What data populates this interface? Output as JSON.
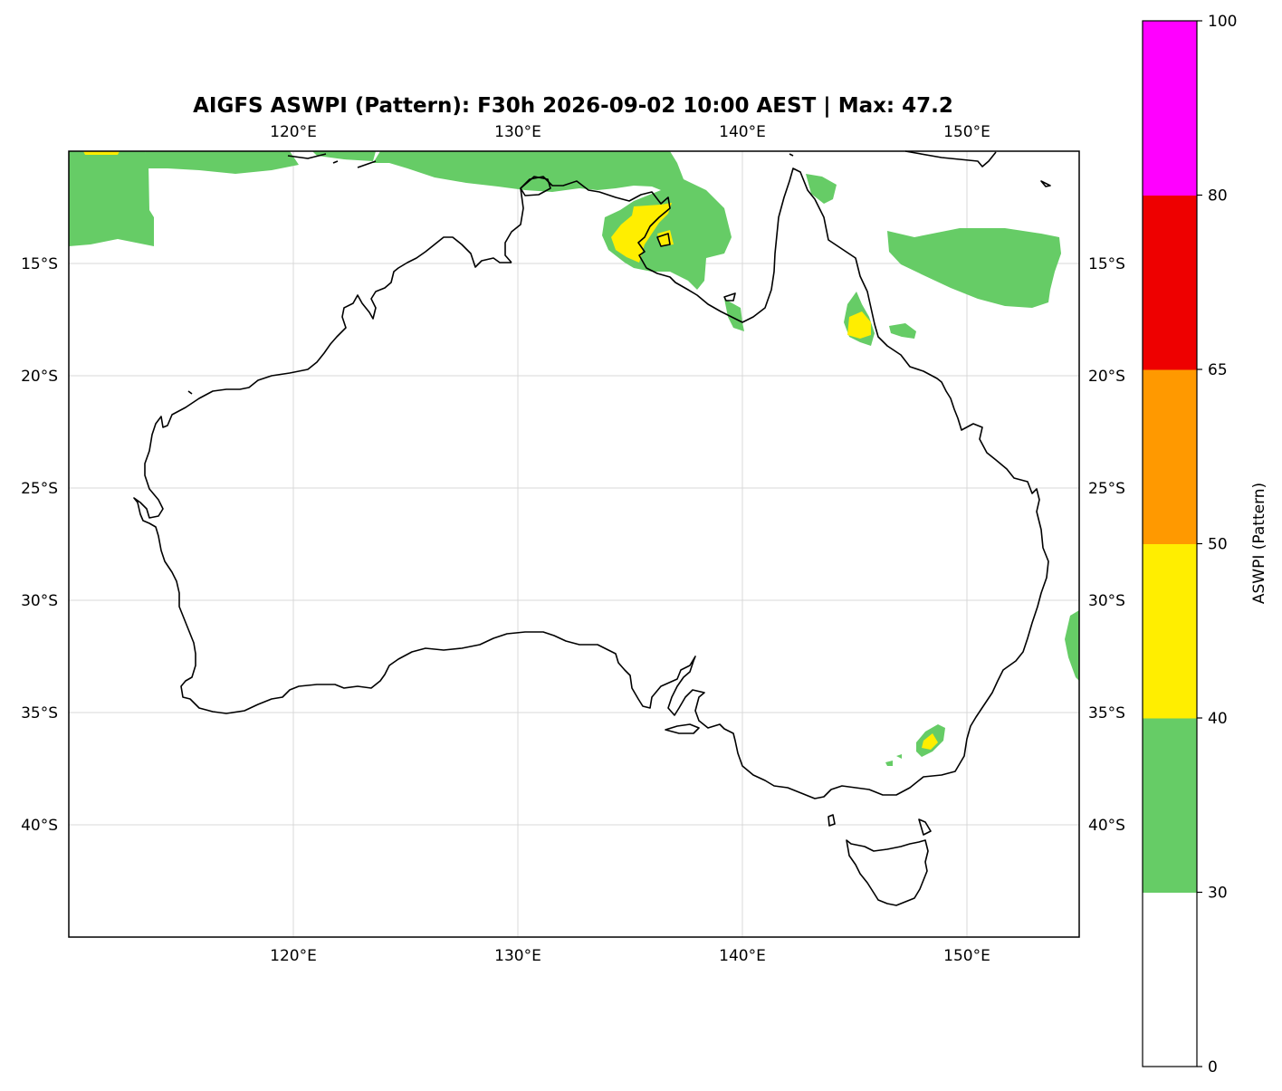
{
  "title": "AIGFS ASWPI (Pattern): F30h 2026-09-02 10:00 AEST | Max: 47.2",
  "map": {
    "projection": "PlateCarree",
    "lon_range": [
      110,
      155
    ],
    "lat_range": [
      -45,
      -10
    ],
    "lon_ticks": [
      {
        "value": 120,
        "label": "120°E"
      },
      {
        "value": 130,
        "label": "130°E"
      },
      {
        "value": 140,
        "label": "140°E"
      },
      {
        "value": 150,
        "label": "150°E"
      }
    ],
    "lat_ticks": [
      {
        "value": -15,
        "label": "15°S"
      },
      {
        "value": -20,
        "label": "20°S"
      },
      {
        "value": -25,
        "label": "25°S"
      },
      {
        "value": -30,
        "label": "30°S"
      },
      {
        "value": -35,
        "label": "35°S"
      },
      {
        "value": -40,
        "label": "40°S"
      }
    ],
    "gridlines": true,
    "coastline_color": "#000000",
    "field_max": 47.2
  },
  "colorbar": {
    "label": "ASWPI (Pattern)",
    "orientation": "vertical",
    "placement": "right",
    "levels": [
      {
        "lower": 0,
        "upper": 30,
        "color": "#ffffff"
      },
      {
        "lower": 30,
        "upper": 40,
        "color": "#66cc66"
      },
      {
        "lower": 40,
        "upper": 50,
        "color": "#ffee00"
      },
      {
        "lower": 50,
        "upper": 65,
        "color": "#ff9900"
      },
      {
        "lower": 65,
        "upper": 80,
        "color": "#ee0000"
      },
      {
        "lower": 80,
        "upper": 100,
        "color": "#ff00ff"
      }
    ],
    "ticks": [
      {
        "value": 0,
        "label": "0"
      },
      {
        "value": 30,
        "label": "30"
      },
      {
        "value": 40,
        "label": "40"
      },
      {
        "value": 50,
        "label": "50"
      },
      {
        "value": 65,
        "label": "65"
      },
      {
        "value": 80,
        "label": "80"
      },
      {
        "value": 100,
        "label": "100"
      }
    ]
  }
}
